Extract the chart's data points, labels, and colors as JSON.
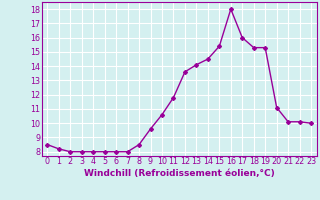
{
  "x": [
    0,
    1,
    2,
    3,
    4,
    5,
    6,
    7,
    8,
    9,
    10,
    11,
    12,
    13,
    14,
    15,
    16,
    17,
    18,
    19,
    20,
    21,
    22,
    23
  ],
  "y": [
    8.5,
    8.2,
    8.0,
    8.0,
    8.0,
    8.0,
    8.0,
    8.0,
    8.5,
    9.6,
    10.6,
    11.8,
    13.6,
    14.1,
    14.5,
    15.4,
    18.0,
    16.0,
    15.3,
    15.3,
    11.1,
    10.1,
    10.1,
    10.0
  ],
  "line_color": "#990099",
  "marker": "D",
  "marker_size": 2,
  "xlabel": "Windchill (Refroidissement éolien,°C)",
  "ylabel_ticks": [
    8,
    9,
    10,
    11,
    12,
    13,
    14,
    15,
    16,
    17,
    18
  ],
  "ylim": [
    7.7,
    18.5
  ],
  "xlim": [
    -0.5,
    23.5
  ],
  "background_color": "#d4f0f0",
  "grid_color": "#ffffff",
  "xlabel_fontsize": 6.5,
  "tick_fontsize": 5.8,
  "line_width": 1.0
}
